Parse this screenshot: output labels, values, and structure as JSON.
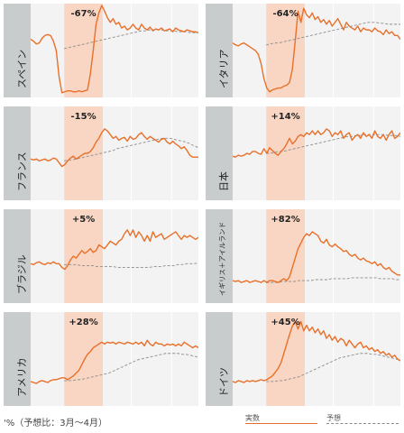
{
  "colors": {
    "actual": "#e8702a",
    "forecast": "#8c8c8c",
    "highlight": "#f9d6c3",
    "panel_bg": "#f3f3f3",
    "label_bg": "#c9cccd",
    "grid": "#ffffff"
  },
  "footer": {
    "caption": "'%（予想比：3月〜4月）",
    "legend_actual": "実数",
    "legend_forecast": "予想"
  },
  "chart_data": {
    "type": "line",
    "highlight_range": [
      0.2,
      0.43
    ],
    "gridlines_x": [
      0.6,
      0.84
    ],
    "panels": [
      {
        "country": "スペイン",
        "change": "-67%",
        "actual": [
          0.62,
          0.6,
          0.57,
          0.58,
          0.63,
          0.66,
          0.67,
          0.66,
          0.6,
          0.5,
          0.22,
          0.05,
          0.06,
          0.07,
          0.07,
          0.06,
          0.06,
          0.07,
          0.06,
          0.07,
          0.08,
          0.25,
          0.5,
          0.78,
          0.9,
          0.98,
          0.92,
          0.85,
          0.8,
          0.84,
          0.78,
          0.8,
          0.74,
          0.76,
          0.72,
          0.74,
          0.78,
          0.74,
          0.72,
          0.78,
          0.74,
          0.72,
          0.75,
          0.71,
          0.73,
          0.72,
          0.74,
          0.71,
          0.72,
          0.73,
          0.7,
          0.74,
          0.72,
          0.71,
          0.7,
          0.72,
          0.71,
          0.7,
          0.7,
          0.69
        ],
        "forecast": [
          0.52,
          0.53,
          0.54,
          0.55,
          0.56,
          0.57,
          0.58,
          0.59,
          0.6,
          0.61,
          0.62,
          0.63,
          0.64,
          0.65,
          0.66,
          0.67,
          0.68,
          0.69,
          0.7,
          0.71,
          0.71,
          0.72,
          0.72,
          0.72,
          0.72,
          0.71,
          0.71,
          0.71,
          0.7,
          0.7,
          0.7,
          0.69,
          0.69,
          0.69
        ]
      },
      {
        "country": "イタリア",
        "change": "-64%",
        "actual": [
          0.58,
          0.56,
          0.55,
          0.57,
          0.58,
          0.56,
          0.54,
          0.52,
          0.5,
          0.46,
          0.36,
          0.2,
          0.1,
          0.06,
          0.08,
          0.09,
          0.1,
          0.1,
          0.12,
          0.13,
          0.16,
          0.3,
          0.6,
          0.92,
          0.8,
          0.95,
          0.88,
          0.85,
          0.9,
          0.83,
          0.86,
          0.8,
          0.83,
          0.78,
          0.82,
          0.76,
          0.8,
          0.84,
          0.78,
          0.72,
          0.8,
          0.76,
          0.74,
          0.72,
          0.76,
          0.7,
          0.74,
          0.72,
          0.72,
          0.7,
          0.74,
          0.71,
          0.7,
          0.67,
          0.72,
          0.68,
          0.7,
          0.66,
          0.66,
          0.62
        ],
        "forecast": [
          0.56,
          0.57,
          0.58,
          0.58,
          0.59,
          0.6,
          0.61,
          0.62,
          0.63,
          0.64,
          0.65,
          0.66,
          0.67,
          0.68,
          0.69,
          0.7,
          0.71,
          0.72,
          0.73,
          0.74,
          0.75,
          0.76,
          0.77,
          0.78,
          0.79,
          0.8,
          0.8,
          0.8,
          0.79,
          0.79,
          0.78,
          0.78,
          0.78,
          0.78
        ]
      },
      {
        "country": "フランス",
        "change": "-15%",
        "actual": [
          0.44,
          0.43,
          0.44,
          0.42,
          0.43,
          0.44,
          0.42,
          0.43,
          0.45,
          0.44,
          0.4,
          0.36,
          0.38,
          0.42,
          0.45,
          0.47,
          0.44,
          0.46,
          0.48,
          0.5,
          0.5,
          0.52,
          0.56,
          0.62,
          0.66,
          0.72,
          0.76,
          0.74,
          0.7,
          0.66,
          0.68,
          0.64,
          0.66,
          0.67,
          0.63,
          0.68,
          0.65,
          0.66,
          0.7,
          0.72,
          0.68,
          0.65,
          0.68,
          0.66,
          0.64,
          0.62,
          0.65,
          0.66,
          0.62,
          0.6,
          0.63,
          0.6,
          0.58,
          0.55,
          0.57,
          0.53,
          0.48,
          0.46,
          0.46,
          0.46
        ],
        "forecast": [
          0.42,
          0.43,
          0.43,
          0.44,
          0.45,
          0.46,
          0.47,
          0.48,
          0.49,
          0.5,
          0.51,
          0.52,
          0.53,
          0.55,
          0.56,
          0.57,
          0.58,
          0.59,
          0.6,
          0.61,
          0.62,
          0.63,
          0.64,
          0.65,
          0.66,
          0.66,
          0.66,
          0.65,
          0.64,
          0.63,
          0.62,
          0.6,
          0.58,
          0.56
        ]
      },
      {
        "country": "日本",
        "change": "+14%",
        "actual": [
          0.47,
          0.46,
          0.48,
          0.47,
          0.48,
          0.5,
          0.49,
          0.52,
          0.52,
          0.5,
          0.49,
          0.55,
          0.5,
          0.56,
          0.53,
          0.5,
          0.48,
          0.52,
          0.55,
          0.6,
          0.66,
          0.6,
          0.63,
          0.68,
          0.7,
          0.68,
          0.72,
          0.7,
          0.74,
          0.7,
          0.74,
          0.7,
          0.72,
          0.76,
          0.74,
          0.68,
          0.72,
          0.7,
          0.74,
          0.66,
          0.7,
          0.72,
          0.64,
          0.68,
          0.7,
          0.66,
          0.72,
          0.68,
          0.7,
          0.66,
          0.74,
          0.68,
          0.66,
          0.7,
          0.64,
          0.7,
          0.74,
          0.66,
          0.68,
          0.72
        ],
        "forecast": [
          0.5,
          0.5,
          0.51,
          0.52,
          0.52,
          0.53,
          0.54,
          0.55,
          0.56,
          0.57,
          0.58,
          0.59,
          0.6,
          0.61,
          0.62,
          0.63,
          0.64,
          0.65,
          0.66,
          0.67,
          0.68,
          0.68,
          0.69,
          0.69,
          0.7,
          0.7,
          0.7,
          0.7,
          0.7,
          0.7,
          0.69,
          0.69,
          0.69,
          0.68
        ]
      },
      {
        "country": "ブラジル",
        "change": "+5%",
        "actual": [
          0.42,
          0.41,
          0.43,
          0.44,
          0.42,
          0.41,
          0.43,
          0.42,
          0.44,
          0.42,
          0.42,
          0.38,
          0.36,
          0.4,
          0.46,
          0.5,
          0.48,
          0.52,
          0.56,
          0.53,
          0.55,
          0.58,
          0.54,
          0.56,
          0.62,
          0.6,
          0.58,
          0.62,
          0.66,
          0.64,
          0.62,
          0.66,
          0.68,
          0.74,
          0.78,
          0.72,
          0.78,
          0.7,
          0.76,
          0.72,
          0.66,
          0.72,
          0.66,
          0.76,
          0.7,
          0.72,
          0.74,
          0.68,
          0.7,
          0.72,
          0.74,
          0.76,
          0.72,
          0.68,
          0.72,
          0.7,
          0.72,
          0.7,
          0.68,
          0.7
        ],
        "forecast": [
          0.41,
          0.41,
          0.41,
          0.41,
          0.4,
          0.4,
          0.4,
          0.4,
          0.39,
          0.39,
          0.39,
          0.39,
          0.39,
          0.38,
          0.38,
          0.38,
          0.38,
          0.38,
          0.38,
          0.38,
          0.38,
          0.38,
          0.39,
          0.39,
          0.39,
          0.4,
          0.4,
          0.4,
          0.41,
          0.41,
          0.42,
          0.42,
          0.42,
          0.43
        ]
      },
      {
        "country": "イギリス＋アイルランド",
        "change": "+82%",
        "actual": [
          0.24,
          0.23,
          0.24,
          0.22,
          0.23,
          0.24,
          0.22,
          0.23,
          0.24,
          0.23,
          0.22,
          0.24,
          0.22,
          0.24,
          0.24,
          0.23,
          0.22,
          0.24,
          0.26,
          0.24,
          0.28,
          0.38,
          0.48,
          0.58,
          0.64,
          0.7,
          0.74,
          0.72,
          0.76,
          0.74,
          0.72,
          0.66,
          0.64,
          0.68,
          0.62,
          0.6,
          0.63,
          0.6,
          0.58,
          0.55,
          0.56,
          0.52,
          0.5,
          0.52,
          0.48,
          0.46,
          0.48,
          0.45,
          0.44,
          0.42,
          0.44,
          0.4,
          0.42,
          0.38,
          0.36,
          0.38,
          0.34,
          0.32,
          0.3,
          0.3
        ],
        "forecast": [
          0.22,
          0.22,
          0.22,
          0.22,
          0.23,
          0.23,
          0.23,
          0.23,
          0.24,
          0.24,
          0.24,
          0.24,
          0.25,
          0.25,
          0.25,
          0.25,
          0.26,
          0.26,
          0.26,
          0.26,
          0.26,
          0.27,
          0.27,
          0.27,
          0.27,
          0.27,
          0.27,
          0.27,
          0.26,
          0.26,
          0.26,
          0.26,
          0.25,
          0.25
        ]
      },
      {
        "country": "アメリカ",
        "change": "+28%",
        "actual": [
          0.26,
          0.25,
          0.24,
          0.26,
          0.27,
          0.26,
          0.25,
          0.27,
          0.28,
          0.28,
          0.29,
          0.3,
          0.3,
          0.28,
          0.3,
          0.32,
          0.35,
          0.38,
          0.44,
          0.5,
          0.55,
          0.58,
          0.62,
          0.64,
          0.66,
          0.68,
          0.66,
          0.68,
          0.67,
          0.68,
          0.66,
          0.68,
          0.67,
          0.66,
          0.68,
          0.67,
          0.66,
          0.68,
          0.66,
          0.68,
          0.64,
          0.7,
          0.66,
          0.64,
          0.68,
          0.66,
          0.66,
          0.64,
          0.66,
          0.65,
          0.66,
          0.64,
          0.66,
          0.64,
          0.68,
          0.66,
          0.64,
          0.62,
          0.64,
          0.62
        ],
        "forecast": [
          0.27,
          0.27,
          0.27,
          0.28,
          0.28,
          0.29,
          0.3,
          0.31,
          0.32,
          0.33,
          0.34,
          0.35,
          0.37,
          0.39,
          0.41,
          0.43,
          0.45,
          0.47,
          0.49,
          0.5,
          0.51,
          0.52,
          0.53,
          0.54,
          0.55,
          0.56,
          0.56,
          0.56,
          0.56,
          0.55,
          0.55,
          0.54,
          0.53,
          0.52
        ]
      },
      {
        "country": "ドイツ",
        "change": "+45%",
        "actual": [
          0.26,
          0.25,
          0.27,
          0.26,
          0.25,
          0.27,
          0.26,
          0.27,
          0.26,
          0.27,
          0.28,
          0.27,
          0.28,
          0.3,
          0.32,
          0.36,
          0.4,
          0.46,
          0.56,
          0.66,
          0.76,
          0.85,
          0.9,
          0.82,
          0.9,
          0.8,
          0.86,
          0.8,
          0.84,
          0.78,
          0.82,
          0.76,
          0.8,
          0.72,
          0.76,
          0.7,
          0.74,
          0.68,
          0.72,
          0.7,
          0.64,
          0.7,
          0.66,
          0.62,
          0.66,
          0.68,
          0.62,
          0.64,
          0.6,
          0.62,
          0.58,
          0.6,
          0.56,
          0.58,
          0.54,
          0.56,
          0.52,
          0.54,
          0.5,
          0.48
        ],
        "forecast": [
          0.26,
          0.26,
          0.26,
          0.27,
          0.27,
          0.28,
          0.29,
          0.3,
          0.31,
          0.33,
          0.35,
          0.37,
          0.39,
          0.41,
          0.43,
          0.45,
          0.47,
          0.49,
          0.51,
          0.52,
          0.53,
          0.54,
          0.55,
          0.56,
          0.56,
          0.56,
          0.55,
          0.55,
          0.54,
          0.53,
          0.52,
          0.51,
          0.5,
          0.49
        ]
      }
    ]
  }
}
